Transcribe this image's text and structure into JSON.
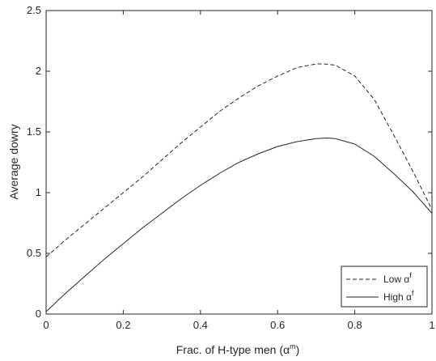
{
  "chart_data": {
    "type": "line",
    "xlabel_base": "Frac. of H-type men (",
    "xlabel_symbol": "α",
    "xlabel_sup": "m",
    "xlabel_end": ")",
    "ylabel": "Average dowry",
    "xlim": [
      0,
      1
    ],
    "ylim": [
      0,
      2.5
    ],
    "xticks": [
      0,
      0.2,
      0.4,
      0.6,
      0.8,
      1
    ],
    "xtick_labels": [
      "0",
      "0.2",
      "0.4",
      "0.6",
      "0.8",
      "1"
    ],
    "yticks": [
      0,
      0.5,
      1,
      1.5,
      2,
      2.5
    ],
    "ytick_labels": [
      "0",
      "0.5",
      "1",
      "1.5",
      "2",
      "2.5"
    ],
    "grid": false,
    "legend_position": "bottom-right",
    "series": [
      {
        "name_base": "Low ",
        "name_symbol": "α",
        "name_sup": "f",
        "style": "dashed",
        "color": "#262626",
        "x": [
          0,
          0.05,
          0.1,
          0.15,
          0.2,
          0.25,
          0.3,
          0.35,
          0.4,
          0.45,
          0.5,
          0.55,
          0.6,
          0.65,
          0.7,
          0.72,
          0.75,
          0.8,
          0.85,
          0.9,
          0.95,
          1.0
        ],
        "y": [
          0.47,
          0.61,
          0.74,
          0.87,
          1.0,
          1.13,
          1.27,
          1.41,
          1.54,
          1.67,
          1.78,
          1.88,
          1.96,
          2.03,
          2.06,
          2.06,
          2.05,
          1.96,
          1.77,
          1.48,
          1.18,
          0.86
        ]
      },
      {
        "name_base": "High ",
        "name_symbol": "α",
        "name_sup": "f",
        "style": "solid",
        "color": "#262626",
        "x": [
          0,
          0.05,
          0.1,
          0.15,
          0.2,
          0.25,
          0.3,
          0.35,
          0.4,
          0.45,
          0.5,
          0.55,
          0.6,
          0.65,
          0.7,
          0.73,
          0.75,
          0.8,
          0.85,
          0.9,
          0.95,
          1.0
        ],
        "y": [
          0.02,
          0.17,
          0.31,
          0.45,
          0.58,
          0.71,
          0.83,
          0.95,
          1.06,
          1.16,
          1.25,
          1.32,
          1.38,
          1.42,
          1.445,
          1.45,
          1.445,
          1.4,
          1.3,
          1.16,
          1.01,
          0.83
        ]
      }
    ]
  }
}
